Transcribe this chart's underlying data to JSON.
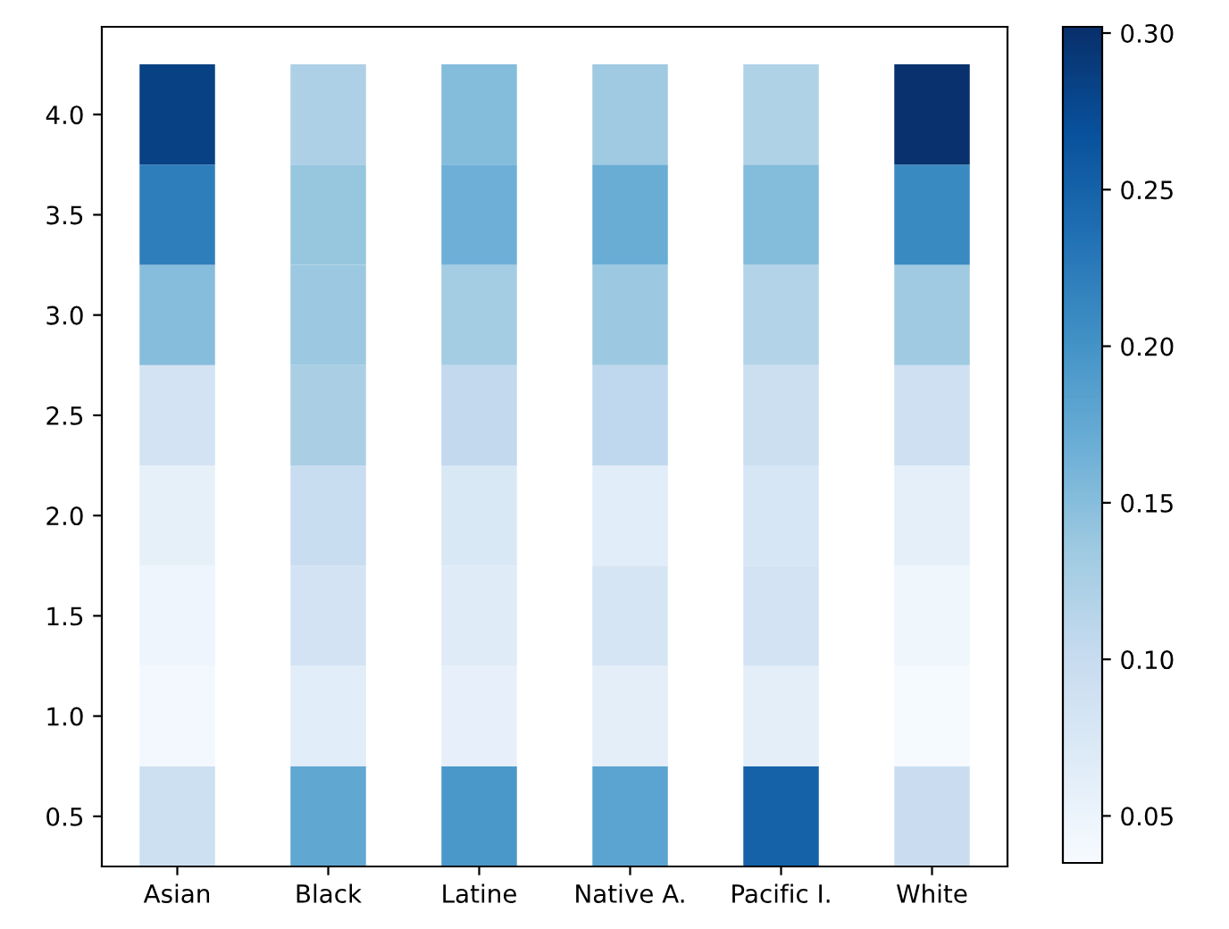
{
  "chart_data": {
    "type": "heatmap",
    "categories": [
      "Asian",
      "Black",
      "Latine",
      "Native A.",
      "Pacific I.",
      "White"
    ],
    "y_categories": [
      "4.0",
      "3.5",
      "3.0",
      "2.5",
      "2.0",
      "1.5",
      "1.0",
      "0.5"
    ],
    "cells": [
      [
        0.285,
        0.123,
        0.152,
        0.135,
        0.12,
        0.3
      ],
      [
        0.222,
        0.14,
        0.167,
        0.17,
        0.152,
        0.21
      ],
      [
        0.15,
        0.137,
        0.13,
        0.137,
        0.118,
        0.135
      ],
      [
        0.085,
        0.125,
        0.105,
        0.107,
        0.094,
        0.091
      ],
      [
        0.058,
        0.098,
        0.075,
        0.065,
        0.079,
        0.059
      ],
      [
        0.048,
        0.085,
        0.068,
        0.08,
        0.085,
        0.046
      ],
      [
        0.042,
        0.065,
        0.057,
        0.063,
        0.062,
        0.038
      ],
      [
        0.092,
        0.177,
        0.195,
        0.182,
        0.25,
        0.097
      ]
    ],
    "clim": [
      0.035,
      0.302
    ],
    "cticks": [
      {
        "value": 0.05,
        "label": "0.05"
      },
      {
        "value": 0.1,
        "label": "0.10"
      },
      {
        "value": 0.15,
        "label": "0.15"
      },
      {
        "value": 0.2,
        "label": "0.20"
      },
      {
        "value": 0.25,
        "label": "0.25"
      },
      {
        "value": 0.3,
        "label": "0.30"
      }
    ]
  }
}
